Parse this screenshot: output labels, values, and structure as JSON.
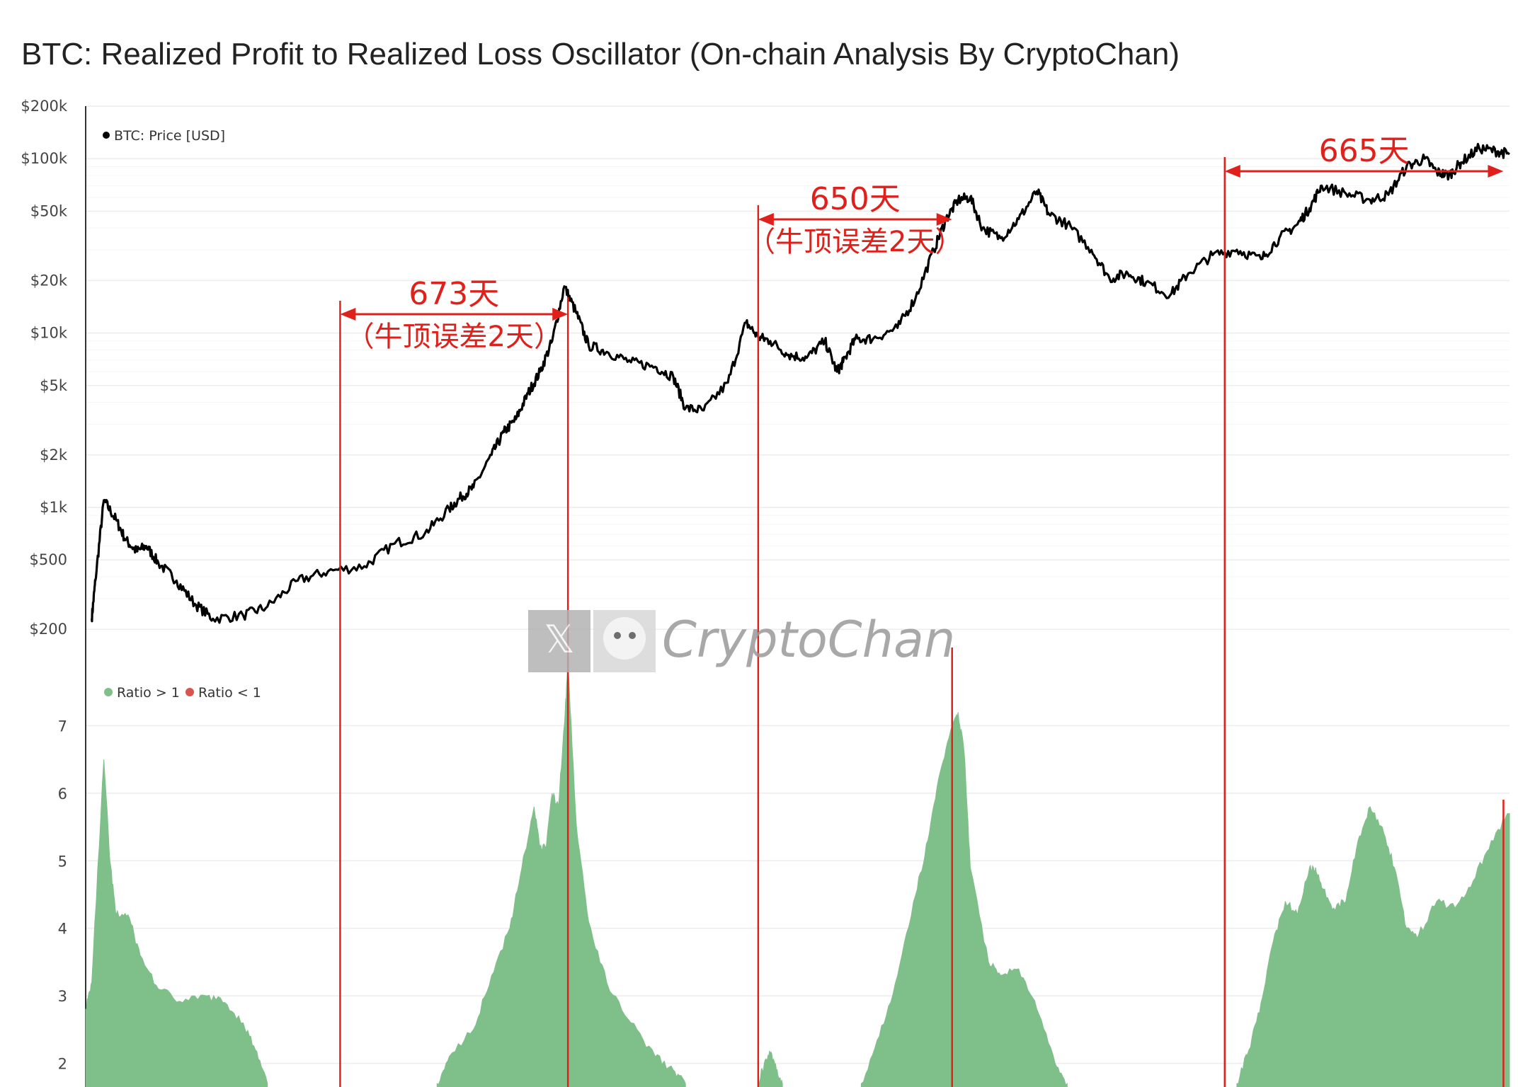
{
  "title": "BTC: Realized Profit to Realized Loss Oscillator (On-chain Analysis By CryptoChan)",
  "watermark": "CryptoChan",
  "colors": {
    "price": "#000000",
    "ratio_gt1": "#7fbf8a",
    "ratio_lt1": "#d9534f",
    "annotation": "#e0201b",
    "grid": "#ececec"
  },
  "chart_data": [
    {
      "type": "line",
      "scale": "log",
      "yticks": [
        "$200k",
        "$100k",
        "$50k",
        "$20k",
        "$10k",
        "$5k",
        "$2k",
        "$1k",
        "$500",
        "$200"
      ],
      "ytick_values": [
        200000,
        100000,
        50000,
        20000,
        10000,
        5000,
        2000,
        1000,
        500,
        200
      ],
      "ylim": [
        150,
        200000
      ],
      "legend": [
        "BTC: Price [USD]"
      ],
      "series": [
        {
          "name": "BTC: Price [USD]",
          "x": [
            2014.05,
            2014.08,
            2014.15,
            2014.25,
            2014.33,
            2014.42,
            2014.5,
            2014.6,
            2014.75,
            2014.9,
            2015.05,
            2015.3,
            2015.5,
            2015.75,
            2016.0,
            2016.3,
            2016.55,
            2016.8,
            2017.0,
            2017.1,
            2017.2,
            2017.35,
            2017.45,
            2017.55,
            2017.65,
            2017.75,
            2017.85,
            2017.95,
            2018.05,
            2018.15,
            2018.3,
            2018.5,
            2018.7,
            2018.85,
            2018.95,
            2019.1,
            2019.3,
            2019.45,
            2019.55,
            2019.65,
            2019.8,
            2019.95,
            2020.1,
            2020.2,
            2020.25,
            2020.35,
            2020.5,
            2020.7,
            2020.85,
            2021.0,
            2021.1,
            2021.2,
            2021.3,
            2021.4,
            2021.55,
            2021.7,
            2021.85,
            2021.95,
            2022.1,
            2022.3,
            2022.45,
            2022.6,
            2022.75,
            2022.95,
            2023.1,
            2023.3,
            2023.5,
            2023.7,
            2023.85,
            2024.0,
            2024.1,
            2024.2,
            2024.4,
            2024.6,
            2024.75,
            2024.9,
            2025.05,
            2025.15,
            2025.25,
            2025.35,
            2025.5,
            2025.65,
            2025.75
          ],
          "values": [
            230,
            380,
            1100,
            850,
            650,
            560,
            600,
            480,
            380,
            280,
            230,
            240,
            270,
            380,
            430,
            460,
            620,
            710,
            980,
            1150,
            1300,
            2000,
            2700,
            3200,
            4500,
            6000,
            9000,
            18500,
            13000,
            8500,
            7800,
            6800,
            6400,
            5600,
            3700,
            3600,
            5200,
            11500,
            9500,
            9000,
            7500,
            7200,
            9000,
            6000,
            6800,
            9200,
            9300,
            10700,
            16000,
            30000,
            45000,
            58000,
            60000,
            40000,
            35000,
            45000,
            65000,
            48000,
            42000,
            30000,
            20500,
            22000,
            19500,
            16500,
            22000,
            28000,
            30000,
            26500,
            35000,
            42000,
            52000,
            70000,
            63000,
            58000,
            62000,
            90000,
            100000,
            84000,
            80000,
            95000,
            115000,
            110000,
            106000
          ]
        }
      ]
    },
    {
      "type": "area",
      "yticks": [
        "7",
        "6",
        "5",
        "4",
        "3",
        "2"
      ],
      "ytick_values": [
        7,
        6,
        5,
        4,
        3,
        2
      ],
      "ylim": [
        1.65,
        8.0
      ],
      "legend": [
        "Ratio > 1",
        "Ratio < 1"
      ],
      "series": [
        {
          "name": "Ratio > 1",
          "x": [
            2014.0,
            2014.05,
            2014.15,
            2014.2,
            2014.25,
            2014.35,
            2014.45,
            2014.6,
            2014.8,
            2015.0,
            2015.15,
            2015.3,
            2015.4,
            2015.5
          ],
          "values": [
            2.8,
            3.2,
            6.5,
            5.0,
            4.2,
            4.2,
            3.6,
            3.1,
            2.9,
            3.0,
            2.9,
            2.6,
            2.2,
            1.7
          ]
        },
        {
          "name": "Ratio > 1",
          "x": [
            2016.9,
            2017.0,
            2017.2,
            2017.35,
            2017.5,
            2017.6,
            2017.7,
            2017.75,
            2017.8,
            2017.85,
            2017.9,
            2017.95,
            2017.98,
            2018.05,
            2018.15,
            2018.3,
            2018.5,
            2018.7,
            2018.85,
            2018.95
          ],
          "values": [
            1.7,
            2.1,
            2.5,
            3.3,
            4.0,
            4.9,
            5.8,
            5.2,
            5.2,
            6.0,
            5.8,
            7.0,
            7.9,
            5.5,
            4.1,
            3.2,
            2.6,
            2.1,
            1.9,
            1.7
          ]
        },
        {
          "name": "Ratio > 1",
          "x": [
            2019.55,
            2019.6,
            2019.65,
            2019.7,
            2019.75
          ],
          "values": [
            1.7,
            2.0,
            2.15,
            1.9,
            1.7
          ]
        },
        {
          "name": "Ratio > 1",
          "x": [
            2020.4,
            2020.55,
            2020.7,
            2020.85,
            2020.95,
            2021.05,
            2021.15,
            2021.2,
            2021.25,
            2021.3,
            2021.45,
            2021.55,
            2021.7,
            2021.85,
            2022.0,
            2022.1
          ],
          "values": [
            1.7,
            2.4,
            3.3,
            4.5,
            5.3,
            6.3,
            7.0,
            7.2,
            6.6,
            4.9,
            3.5,
            3.3,
            3.4,
            2.8,
            2.0,
            1.7
          ]
        },
        {
          "name": "Ratio > 1",
          "x": [
            2023.5,
            2023.6,
            2023.7,
            2023.8,
            2023.9,
            2024.0,
            2024.1,
            2024.15,
            2024.2,
            2024.3,
            2024.4,
            2024.5,
            2024.6,
            2024.7,
            2024.8,
            2024.9,
            2025.0,
            2025.15,
            2025.3,
            2025.45,
            2025.6,
            2025.75
          ],
          "values": [
            1.7,
            2.2,
            2.9,
            3.8,
            4.4,
            4.2,
            4.9,
            4.9,
            4.6,
            4.3,
            4.4,
            5.3,
            5.8,
            5.5,
            4.9,
            4.0,
            3.9,
            4.4,
            4.3,
            4.7,
            5.3,
            5.7
          ]
        }
      ]
    }
  ],
  "annotations": [
    {
      "days": "673天",
      "note": "（牛顶误差2天）"
    },
    {
      "days": "650天",
      "note": "（牛顶误差2天）"
    },
    {
      "days": "665天",
      "note": ""
    }
  ],
  "cycle_x": [
    [
      2016.1,
      2017.98
    ],
    [
      2019.55,
      2021.15
    ],
    [
      2023.4,
      2025.7
    ]
  ]
}
